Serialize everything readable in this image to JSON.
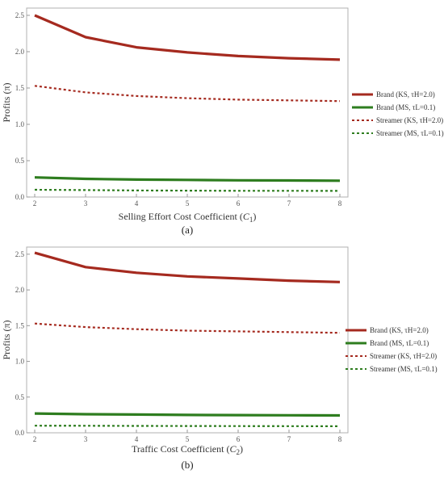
{
  "chart_data": [
    {
      "type": "line",
      "title": "",
      "xlabel": "Selling Effort Cost Coefficient (C1)",
      "xlabel_main": "Selling Effort Cost Coefficient (",
      "xlabel_var": "C",
      "xlabel_sub": "1",
      "xlabel_close": ")",
      "ylabel": "Profits (π)",
      "caption": "(a)",
      "xlim": [
        2,
        8
      ],
      "ylim": [
        0,
        2.6
      ],
      "xticks": [
        "2",
        "3",
        "4",
        "5",
        "6",
        "7",
        "8"
      ],
      "yticks": [
        "0.0",
        "0.5",
        "1.0",
        "1.5",
        "2.0",
        "2.5"
      ],
      "legend_position": "right",
      "x": [
        2,
        3,
        4,
        5,
        6,
        7,
        8
      ],
      "series": [
        {
          "name": "Brand (KS, τH=2.0)",
          "color": "#a52a1f",
          "style": "solid",
          "values": [
            2.5,
            2.2,
            2.06,
            1.99,
            1.94,
            1.91,
            1.89
          ]
        },
        {
          "name": "Brand (MS, τL=0.1)",
          "color": "#2e7d1f",
          "style": "solid",
          "values": [
            0.27,
            0.25,
            0.24,
            0.235,
            0.23,
            0.228,
            0.225
          ]
        },
        {
          "name": "Streamer (KS, τH=2.0)",
          "color": "#a52a1f",
          "style": "dotted",
          "values": [
            1.53,
            1.44,
            1.39,
            1.36,
            1.34,
            1.33,
            1.32
          ]
        },
        {
          "name": "Streamer (MS, τL=0.1)",
          "color": "#2e7d1f",
          "style": "dotted",
          "values": [
            0.1,
            0.095,
            0.09,
            0.088,
            0.086,
            0.085,
            0.084
          ]
        }
      ]
    },
    {
      "type": "line",
      "title": "",
      "xlabel": "Traffic Cost Coefficient (C2)",
      "xlabel_main": "Traffic Cost Coefficient (",
      "xlabel_var": "C",
      "xlabel_sub": "2",
      "xlabel_close": ")",
      "ylabel": "Profits (π)",
      "caption": "(b)",
      "xlim": [
        2,
        8
      ],
      "ylim": [
        0,
        2.6
      ],
      "xticks": [
        "2",
        "3",
        "4",
        "5",
        "6",
        "7",
        "8"
      ],
      "yticks": [
        "0.0",
        "0.5",
        "1.0",
        "1.5",
        "2.0",
        "2.5"
      ],
      "legend_position": "right",
      "x": [
        2,
        3,
        4,
        5,
        6,
        7,
        8
      ],
      "series": [
        {
          "name": "Brand (KS, τH=2.0)",
          "color": "#a52a1f",
          "style": "solid",
          "values": [
            2.52,
            2.32,
            2.24,
            2.19,
            2.16,
            2.13,
            2.11
          ]
        },
        {
          "name": "Brand (MS, τL=0.1)",
          "color": "#2e7d1f",
          "style": "solid",
          "values": [
            0.27,
            0.26,
            0.255,
            0.25,
            0.248,
            0.245,
            0.243
          ]
        },
        {
          "name": "Streamer (KS, τH=2.0)",
          "color": "#a52a1f",
          "style": "dotted",
          "values": [
            1.53,
            1.48,
            1.45,
            1.43,
            1.42,
            1.41,
            1.4
          ]
        },
        {
          "name": "Streamer (MS, τL=0.1)",
          "color": "#2e7d1f",
          "style": "dotted",
          "values": [
            0.1,
            0.098,
            0.096,
            0.095,
            0.094,
            0.093,
            0.092
          ]
        }
      ]
    }
  ]
}
